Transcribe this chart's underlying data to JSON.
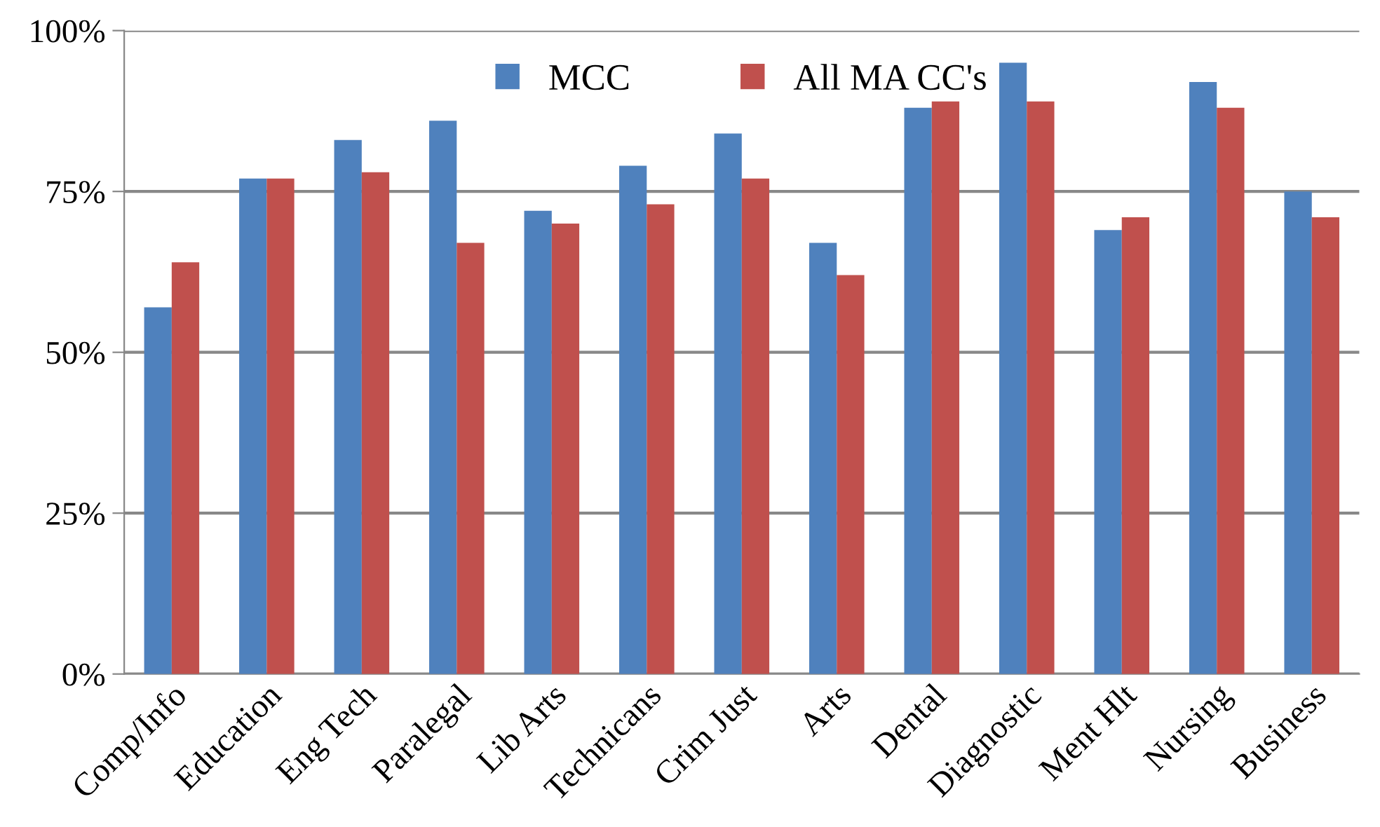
{
  "chart_data": {
    "type": "bar",
    "categories": [
      "Comp/Info",
      "Education",
      "Eng Tech",
      "Paralegal",
      "Lib Arts",
      "Technicans",
      "Crim Just",
      "Arts",
      "Dental",
      "Diagnostic",
      "Ment Hlt",
      "Nursing",
      "Business"
    ],
    "series": [
      {
        "name": "MCC",
        "color": "#4f81bd",
        "values": [
          57,
          77,
          83,
          86,
          72,
          79,
          84,
          67,
          88,
          95,
          69,
          92,
          75
        ]
      },
      {
        "name": "All MA CC's",
        "color": "#c0504d",
        "values": [
          64,
          77,
          78,
          67,
          70,
          73,
          77,
          62,
          89,
          89,
          71,
          88,
          71
        ]
      }
    ],
    "ylim": [
      0,
      100
    ],
    "yticks": [
      {
        "value": 0,
        "label": "0%"
      },
      {
        "value": 25,
        "label": "25%"
      },
      {
        "value": 50,
        "label": "50%"
      },
      {
        "value": 75,
        "label": "75%"
      },
      {
        "value": 100,
        "label": "100%"
      }
    ],
    "grid": "y",
    "legend": "top"
  }
}
